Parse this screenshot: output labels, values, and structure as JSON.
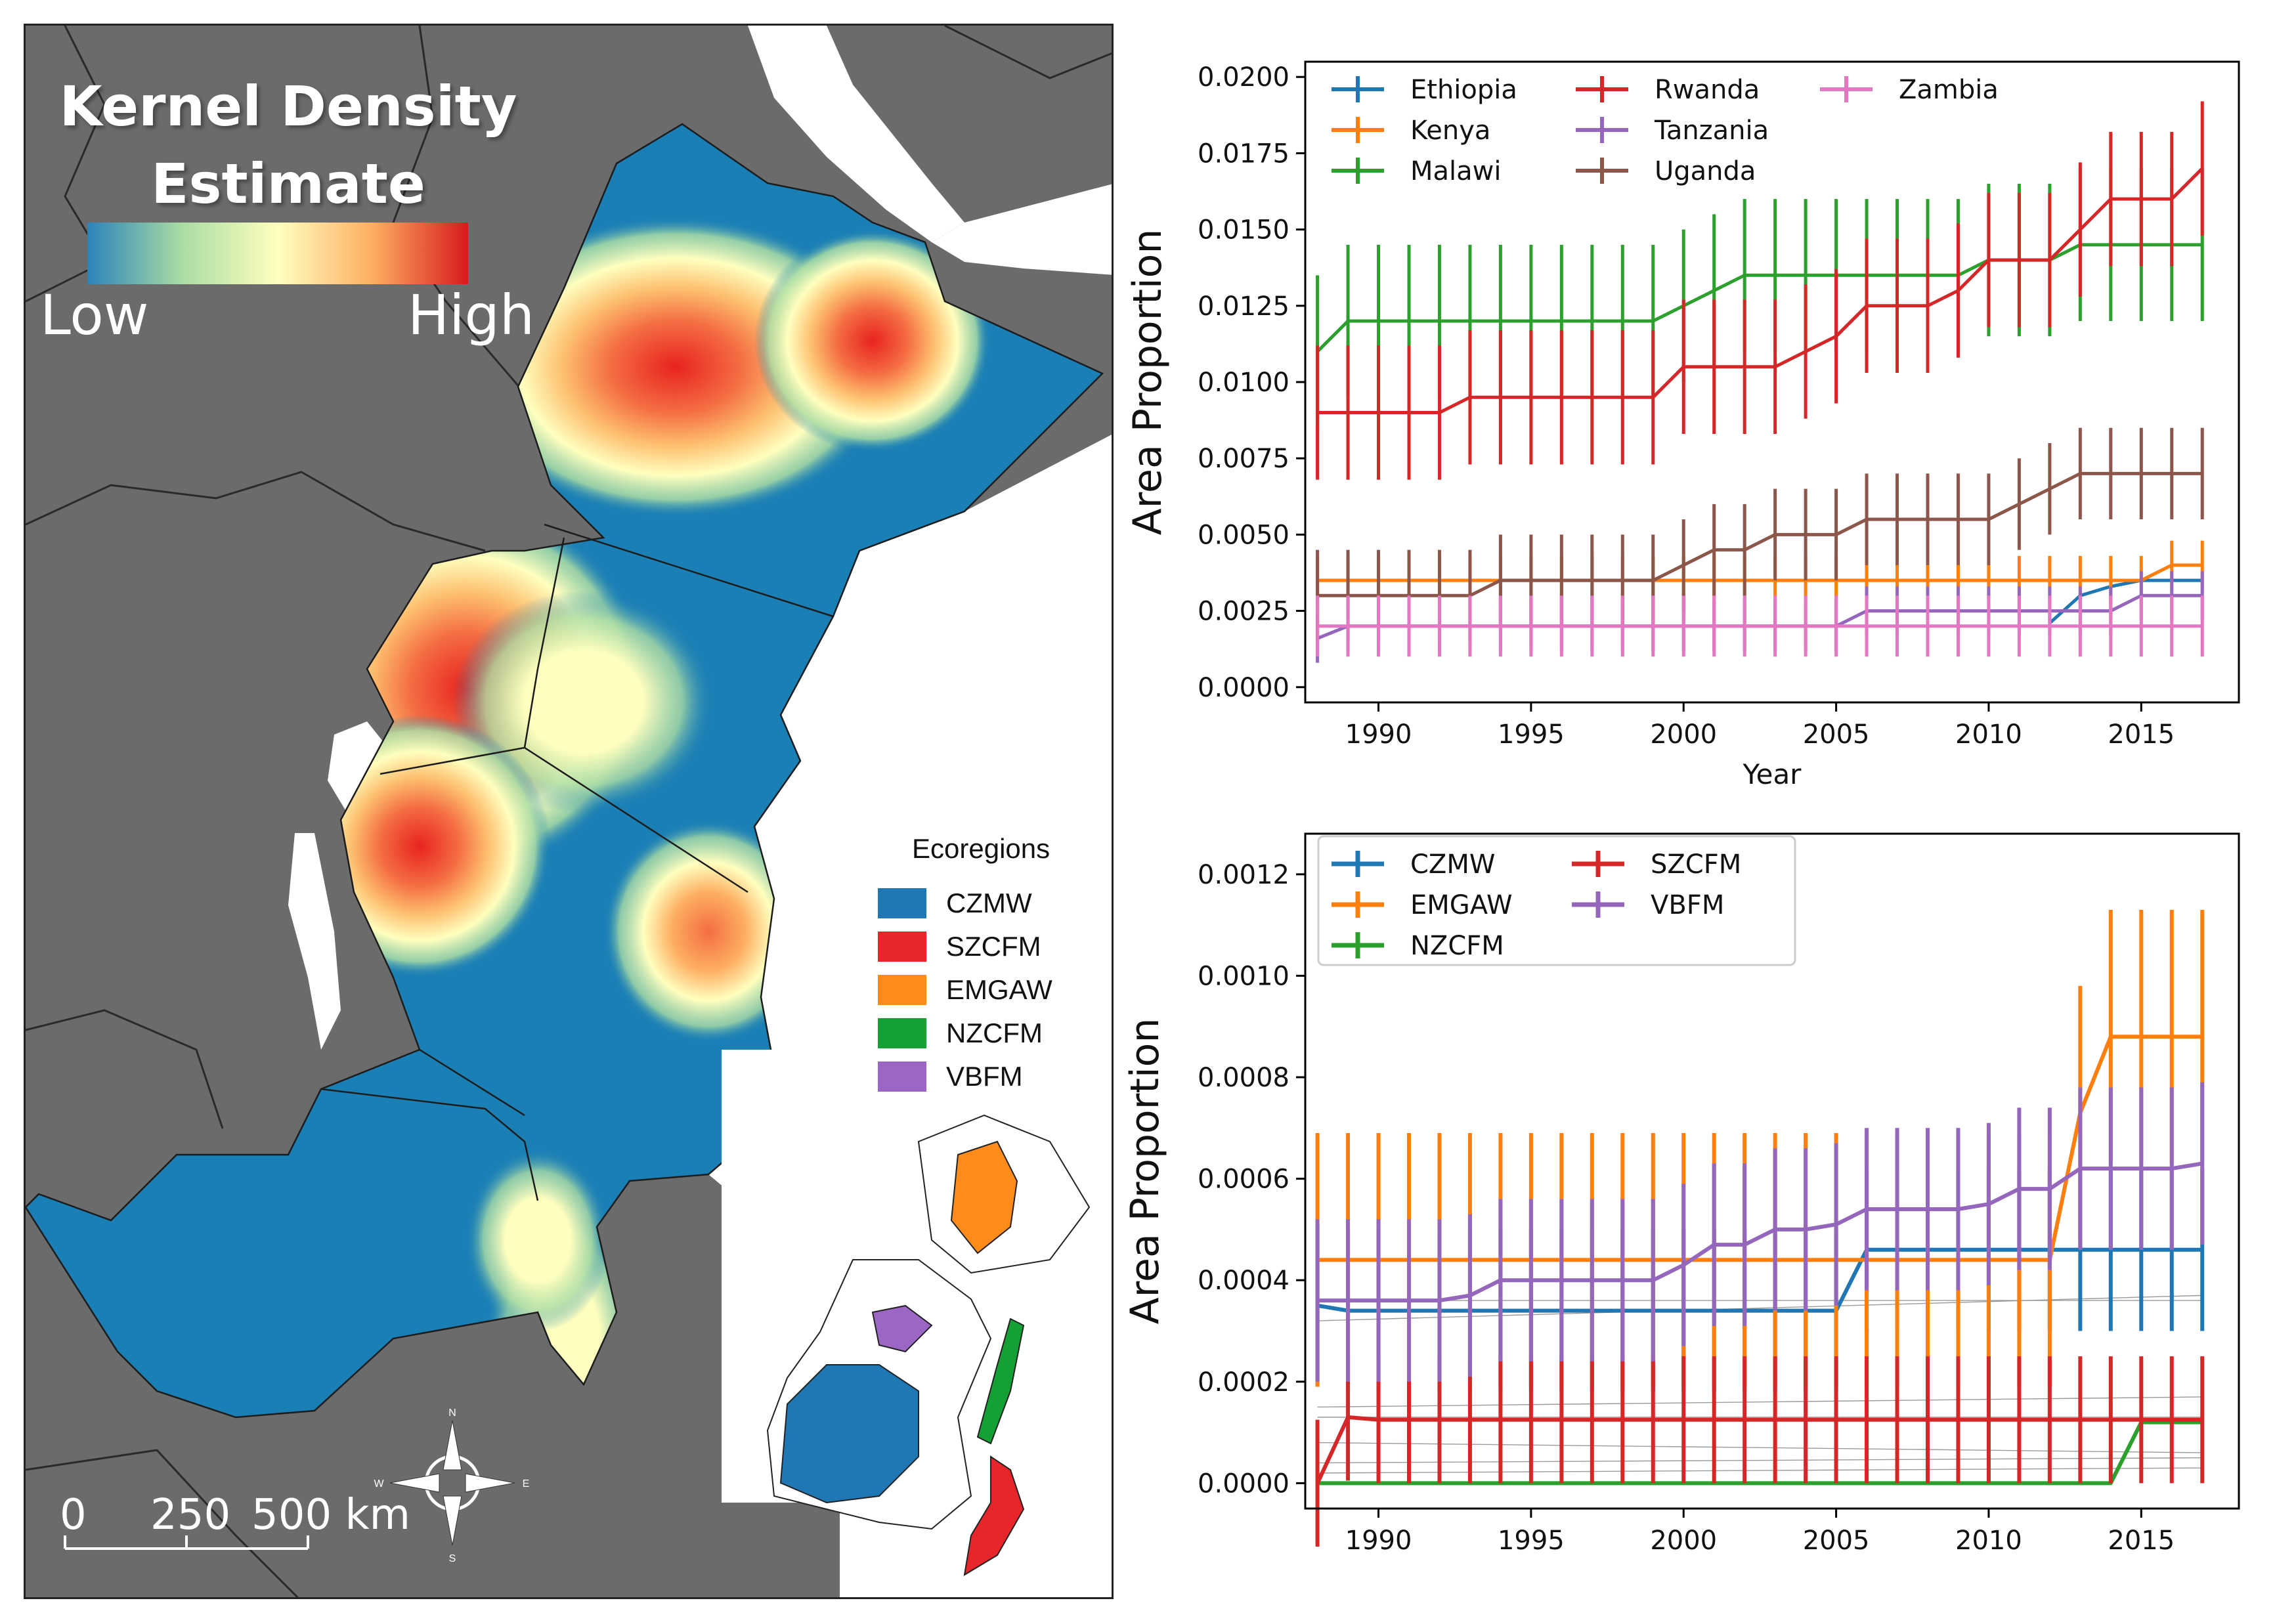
{
  "map": {
    "title_line1": "Kernel Density",
    "title_line2": "Estimate",
    "gradient_low": "Low",
    "gradient_high": "High",
    "gradient_colors": [
      "#2b83ba",
      "#abdda4",
      "#ffffbf",
      "#fdae61",
      "#d7191c"
    ],
    "legend_title": "Ecoregions",
    "legend_items": [
      {
        "label": "CZMW",
        "color": "#1f77b4"
      },
      {
        "label": "SZCFM",
        "color": "#e6262b"
      },
      {
        "label": "EMGAW",
        "color": "#ff8c1a"
      },
      {
        "label": "NZCFM",
        "color": "#15a035"
      },
      {
        "label": "VBFM",
        "color": "#9b66c4"
      }
    ],
    "scale_labels": [
      "0",
      "250",
      "500 km"
    ],
    "compass_labels": {
      "n": "N",
      "s": "S",
      "e": "E",
      "w": "W"
    },
    "land_color": "#6b6b6b",
    "water_color": "#ffffff",
    "density_base_color": "#1a7fb5"
  },
  "chart_data": [
    {
      "type": "line",
      "title": "",
      "xlabel": "Year",
      "ylabel": "Area Proportion",
      "xlim": [
        1987.6,
        2018.2
      ],
      "ylim": [
        -0.0005,
        0.0205
      ],
      "xticks": [
        1990,
        1995,
        2000,
        2005,
        2010,
        2015
      ],
      "yticks": [
        0.0,
        0.0025,
        0.005,
        0.0075,
        0.01,
        0.0125,
        0.015,
        0.0175,
        0.02
      ],
      "yticklabels": [
        "0.0000",
        "0.0025",
        "0.0050",
        "0.0075",
        "0.0100",
        "0.0125",
        "0.0150",
        "0.0175",
        "0.0200"
      ],
      "legend": {
        "placement": "top-left",
        "columns": 3,
        "framed": false
      },
      "x": [
        1988,
        1989,
        1990,
        1991,
        1992,
        1993,
        1994,
        1995,
        1996,
        1997,
        1998,
        1999,
        2000,
        2001,
        2002,
        2003,
        2004,
        2005,
        2006,
        2007,
        2008,
        2009,
        2010,
        2011,
        2012,
        2013,
        2014,
        2015,
        2016,
        2017
      ],
      "series": [
        {
          "name": "Ethiopia",
          "color": "#1f77b4",
          "values": [
            null,
            null,
            null,
            null,
            null,
            null,
            null,
            null,
            null,
            null,
            null,
            null,
            null,
            null,
            null,
            null,
            null,
            null,
            null,
            null,
            null,
            null,
            null,
            null,
            0.0021,
            0.003,
            0.0033,
            0.0035,
            0.0035,
            0.0035
          ],
          "err": 0
        },
        {
          "name": "Kenya",
          "color": "#ff7f0e",
          "values": [
            0.0035,
            0.0035,
            0.0035,
            0.0035,
            0.0035,
            0.0035,
            0.0035,
            0.0035,
            0.0035,
            0.0035,
            0.0035,
            0.0035,
            0.0035,
            0.0035,
            0.0035,
            0.0035,
            0.0035,
            0.0035,
            0.0035,
            0.0035,
            0.0035,
            0.0035,
            0.0035,
            0.0035,
            0.0035,
            0.0035,
            0.0035,
            0.0035,
            0.004,
            0.004
          ],
          "err": 0.0008
        },
        {
          "name": "Malawi",
          "color": "#2ca02c",
          "values": [
            0.011,
            0.012,
            0.012,
            0.012,
            0.012,
            0.012,
            0.012,
            0.012,
            0.012,
            0.012,
            0.012,
            0.012,
            0.0125,
            0.013,
            0.0135,
            0.0135,
            0.0135,
            0.0135,
            0.0135,
            0.0135,
            0.0135,
            0.0135,
            0.014,
            0.014,
            0.014,
            0.0145,
            0.0145,
            0.0145,
            0.0145,
            0.0145
          ],
          "err": 0.0025
        },
        {
          "name": "Rwanda",
          "color": "#d62728",
          "values": [
            0.009,
            0.009,
            0.009,
            0.009,
            0.009,
            0.0095,
            0.0095,
            0.0095,
            0.0095,
            0.0095,
            0.0095,
            0.0095,
            0.0105,
            0.0105,
            0.0105,
            0.0105,
            0.011,
            0.0115,
            0.0125,
            0.0125,
            0.0125,
            0.013,
            0.014,
            0.014,
            0.014,
            0.015,
            0.016,
            0.016,
            0.016,
            0.017
          ],
          "err": 0.0022
        },
        {
          "name": "Tanzania",
          "color": "#9467bd",
          "values": [
            0.0016,
            0.002,
            0.002,
            0.002,
            0.002,
            0.002,
            0.002,
            0.002,
            0.002,
            0.002,
            0.002,
            0.002,
            0.002,
            0.002,
            0.002,
            0.002,
            0.002,
            0.002,
            0.0025,
            0.0025,
            0.0025,
            0.0025,
            0.0025,
            0.0025,
            0.0025,
            0.0025,
            0.0025,
            0.003,
            0.003,
            0.003
          ],
          "err": 0.0008
        },
        {
          "name": "Uganda",
          "color": "#8c564b",
          "values": [
            0.003,
            0.003,
            0.003,
            0.003,
            0.003,
            0.003,
            0.0035,
            0.0035,
            0.0035,
            0.0035,
            0.0035,
            0.0035,
            0.004,
            0.0045,
            0.0045,
            0.005,
            0.005,
            0.005,
            0.0055,
            0.0055,
            0.0055,
            0.0055,
            0.0055,
            0.006,
            0.0065,
            0.007,
            0.007,
            0.007,
            0.007,
            0.007
          ],
          "err": 0.0015
        },
        {
          "name": "Zambia",
          "color": "#e377c2",
          "values": [
            0.002,
            0.002,
            0.002,
            0.002,
            0.002,
            0.002,
            0.002,
            0.002,
            0.002,
            0.002,
            0.002,
            0.002,
            0.002,
            0.002,
            0.002,
            0.002,
            0.002,
            0.002,
            0.002,
            0.002,
            0.002,
            0.002,
            0.002,
            0.002,
            0.002,
            0.002,
            0.002,
            0.002,
            0.002,
            0.002
          ],
          "err": 0.001
        }
      ]
    },
    {
      "type": "line",
      "title": "",
      "xlabel": "",
      "ylabel": "Area Proportion",
      "xlim": [
        1987.6,
        2018.2
      ],
      "ylim": [
        -5e-05,
        0.00128
      ],
      "xticks": [
        1990,
        1995,
        2000,
        2005,
        2010,
        2015
      ],
      "yticks": [
        0.0,
        0.0002,
        0.0004,
        0.0006,
        0.0008,
        0.001,
        0.0012
      ],
      "yticklabels": [
        "0.0000",
        "0.0002",
        "0.0004",
        "0.0006",
        "0.0008",
        "0.0010",
        "0.0012"
      ],
      "legend": {
        "placement": "top-left",
        "columns": 2,
        "framed": true
      },
      "x": [
        1988,
        1989,
        1990,
        1991,
        1992,
        1993,
        1994,
        1995,
        1996,
        1997,
        1998,
        1999,
        2000,
        2001,
        2002,
        2003,
        2004,
        2005,
        2006,
        2007,
        2008,
        2009,
        2010,
        2011,
        2012,
        2013,
        2014,
        2015,
        2016,
        2017
      ],
      "series": [
        {
          "name": "CZMW",
          "color": "#1f77b4",
          "values": [
            0.00035,
            0.00034,
            0.00034,
            0.00034,
            0.00034,
            0.00034,
            0.00034,
            0.00034,
            0.00034,
            0.00034,
            0.00034,
            0.00034,
            0.00034,
            0.00034,
            0.00034,
            0.00034,
            0.00034,
            0.00034,
            0.00046,
            0.00046,
            0.00046,
            0.00046,
            0.00046,
            0.00046,
            0.00046,
            0.00046,
            0.00046,
            0.00046,
            0.00046,
            0.00046
          ],
          "err": 0.00016
        },
        {
          "name": "EMGAW",
          "color": "#ff7f0e",
          "values": [
            0.00044,
            0.00044,
            0.00044,
            0.00044,
            0.00044,
            0.00044,
            0.00044,
            0.00044,
            0.00044,
            0.00044,
            0.00044,
            0.00044,
            0.00044,
            0.00044,
            0.00044,
            0.00044,
            0.00044,
            0.00044,
            0.00044,
            0.00044,
            0.00044,
            0.00044,
            0.00044,
            0.00044,
            0.00044,
            0.00073,
            0.00088,
            0.00088,
            0.00088,
            0.00088
          ],
          "err": 0.00025
        },
        {
          "name": "NZCFM",
          "color": "#2ca02c",
          "values": [
            0,
            0,
            0,
            0,
            0,
            0,
            0,
            0,
            0,
            0,
            0,
            0,
            0,
            0,
            0,
            0,
            0,
            0,
            0,
            0,
            0,
            0,
            0,
            0,
            0,
            0,
            0,
            0.00012,
            0.00012,
            0.00012
          ],
          "err": 0
        },
        {
          "name": "SZCFM",
          "color": "#d62728",
          "values": [
            0,
            0.00013,
            0.000125,
            0.000125,
            0.000125,
            0.000125,
            0.000125,
            0.000125,
            0.000125,
            0.000125,
            0.000125,
            0.000125,
            0.000125,
            0.000125,
            0.000125,
            0.000125,
            0.000125,
            0.000125,
            0.000125,
            0.000125,
            0.000125,
            0.000125,
            0.000125,
            0.000125,
            0.000125,
            0.000125,
            0.000125,
            0.000125,
            0.000125,
            0.000125
          ],
          "err": 0.000125
        },
        {
          "name": "VBFM",
          "color": "#9467bd",
          "values": [
            0.00036,
            0.00036,
            0.00036,
            0.00036,
            0.00036,
            0.00037,
            0.0004,
            0.0004,
            0.0004,
            0.0004,
            0.0004,
            0.0004,
            0.00043,
            0.00047,
            0.00047,
            0.0005,
            0.0005,
            0.00051,
            0.00054,
            0.00054,
            0.00054,
            0.00054,
            0.00055,
            0.00058,
            0.00058,
            0.00062,
            0.00062,
            0.00062,
            0.00062,
            0.00063
          ],
          "err": 0.00016
        }
      ]
    }
  ]
}
